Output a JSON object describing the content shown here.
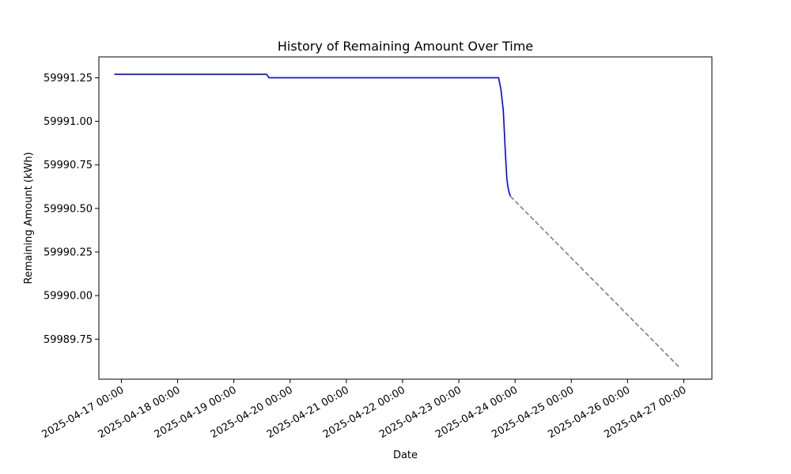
{
  "chart_data": {
    "type": "line",
    "title": "History of Remaining Amount Over Time",
    "xlabel": "Date",
    "ylabel": "Remaining Amount (kWh)",
    "x_ticks": [
      "2025-04-17 00:00",
      "2025-04-18 00:00",
      "2025-04-19 00:00",
      "2025-04-20 00:00",
      "2025-04-21 00:00",
      "2025-04-22 00:00",
      "2025-04-23 00:00",
      "2025-04-24 00:00",
      "2025-04-25 00:00",
      "2025-04-26 00:00",
      "2025-04-27 00:00"
    ],
    "y_ticks": [
      "59989.75",
      "59990.00",
      "59990.25",
      "59990.50",
      "59990.75",
      "59991.00",
      "59991.25"
    ],
    "xlim": [
      "2025-04-16 14:24",
      "2025-04-27 12:00"
    ],
    "ylim": [
      59989.52,
      59991.37
    ],
    "grid": false,
    "series": [
      {
        "style": "solid",
        "color": "#0000ff",
        "points": [
          {
            "x": "2025-04-16 21:00",
            "y": 59991.27
          },
          {
            "x": "2025-04-19 14:00",
            "y": 59991.27
          },
          {
            "x": "2025-04-19 15:00",
            "y": 59991.25
          },
          {
            "x": "2025-04-23 17:00",
            "y": 59991.25
          },
          {
            "x": "2025-04-23 18:00",
            "y": 59991.18
          },
          {
            "x": "2025-04-23 19:00",
            "y": 59991.06
          },
          {
            "x": "2025-04-23 19:45",
            "y": 59990.85
          },
          {
            "x": "2025-04-23 20:30",
            "y": 59990.67
          },
          {
            "x": "2025-04-23 21:00",
            "y": 59990.62
          },
          {
            "x": "2025-04-23 21:30",
            "y": 59990.59
          },
          {
            "x": "2025-04-23 22:00",
            "y": 59990.57
          }
        ]
      },
      {
        "style": "dashed",
        "color": "#808080",
        "points": [
          {
            "x": "2025-04-23 22:00",
            "y": 59990.57
          },
          {
            "x": "2025-04-26 22:00",
            "y": 59989.59
          }
        ]
      }
    ]
  }
}
